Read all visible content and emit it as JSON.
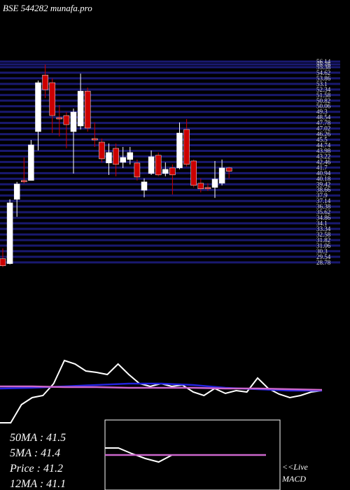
{
  "chart_data": [
    {
      "type": "candlestick",
      "title": "BSE 544282 munafa.pro",
      "open": [
        29.28,
        28.61,
        37.37,
        39.94,
        39.94,
        46.6,
        54.31,
        53.27,
        48.51,
        48.79,
        46.6,
        47.36,
        52.12,
        45.65,
        45.17,
        42.32,
        44.32,
        42.41,
        42.79,
        42.32,
        38.61,
        40.89,
        43.37,
        40.89,
        41.65,
        41.65,
        46.89,
        42.6,
        39.56,
        38.99,
        38.99,
        39.56,
        41.65
      ],
      "high": [
        30.7,
        37.37,
        39.75,
        43.08,
        45.46,
        53.55,
        55.74,
        53.84,
        50.22,
        49.27,
        49.74,
        54.5,
        52.6,
        47.84,
        45.65,
        44.98,
        44.98,
        44.51,
        44.51,
        42.79,
        40.22,
        44.03,
        43.75,
        42.41,
        42.13,
        47.84,
        48.32,
        42.79,
        40.22,
        39.56,
        42.6,
        42.79,
        41.84
      ],
      "low": [
        28.13,
        28.51,
        34.99,
        39.56,
        39.94,
        44.03,
        51.17,
        46.41,
        45.94,
        44.32,
        40.89,
        46.89,
        46.6,
        44.51,
        42.41,
        40.7,
        40.51,
        41.65,
        42.13,
        39.94,
        37.65,
        40.7,
        40.51,
        40.51,
        38.03,
        41.46,
        41.84,
        38.99,
        38.32,
        38.51,
        37.56,
        39.27,
        40.22
      ],
      "close": [
        28.32,
        36.89,
        39.46,
        39.75,
        44.79,
        53.27,
        52.31,
        48.79,
        48.32,
        47.55,
        49.27,
        52.12,
        47.08,
        45.46,
        42.89,
        43.75,
        42.13,
        43.08,
        43.75,
        40.41,
        39.75,
        43.18,
        40.7,
        41.46,
        40.7,
        46.41,
        42.13,
        39.27,
        38.8,
        38.8,
        40.13,
        41.65,
        41.2
      ],
      "up_color": "#ffffff",
      "down_color": "#cc0000",
      "grid_color": "#191970",
      "ylim": [
        28.0,
        56.14
      ],
      "yticks": [
        56.14,
        55.76,
        55.38,
        54.62,
        53.86,
        53.1,
        52.34,
        51.58,
        50.82,
        50.06,
        49.3,
        48.54,
        47.78,
        47.02,
        46.26,
        45.5,
        44.74,
        43.98,
        43.22,
        42.46,
        41.7,
        40.94,
        40.18,
        39.42,
        38.66,
        37.9,
        37.14,
        36.38,
        35.62,
        34.86,
        34.1,
        33.34,
        32.58,
        31.82,
        31.06,
        30.3,
        29.54,
        28.78
      ]
    },
    {
      "type": "line",
      "ylim": [
        0,
        100
      ],
      "series": [
        {
          "color": "#ffffff",
          "values": [
            6,
            6,
            32,
            42,
            45,
            62,
            95,
            90,
            80,
            78,
            75,
            90,
            75,
            62,
            58,
            62,
            58,
            60,
            50,
            45,
            55,
            48,
            52,
            50,
            70,
            55,
            47,
            42,
            45,
            50,
            52
          ]
        },
        {
          "color": "#2222dd",
          "values": [
            55,
            56,
            58,
            60,
            62,
            62,
            60,
            56,
            54,
            52,
            52
          ]
        },
        {
          "color": "#cc66cc",
          "values": [
            58,
            58,
            57,
            57,
            56,
            56,
            56,
            55,
            55,
            54,
            53
          ]
        }
      ]
    },
    {
      "type": "line",
      "ylim": [
        0,
        100
      ],
      "series": [
        {
          "color": "#ffffff",
          "values": [
            60,
            60,
            52,
            45,
            40,
            50,
            50,
            50,
            50,
            50,
            50,
            50,
            50
          ]
        },
        {
          "color": "#cc66cc",
          "values": [
            50,
            50,
            50,
            50,
            50,
            50,
            50,
            50,
            50,
            50,
            50,
            50,
            50
          ]
        }
      ]
    }
  ],
  "info": [
    "50MA : 41.5",
    "5MA : 41.4",
    "Price   : 41.2",
    "12MA : 41.1"
  ],
  "macd_label": [
    "<<Live",
    "MACD"
  ]
}
